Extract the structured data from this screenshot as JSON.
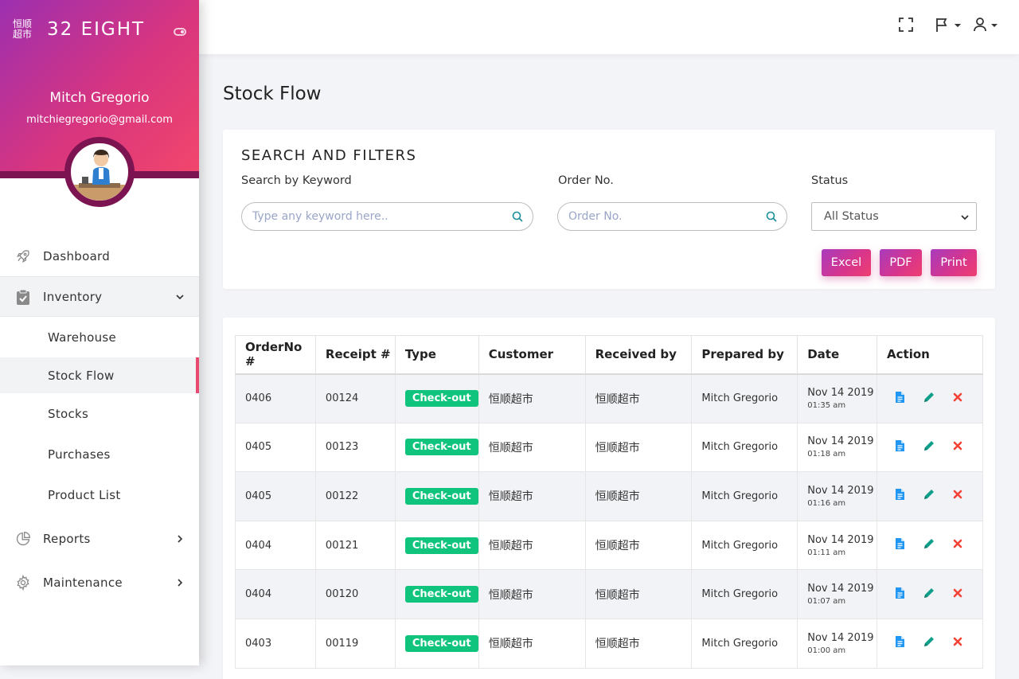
{
  "brand": {
    "logo_line1": "恒顺",
    "logo_line2": "超市",
    "name": "32 EIGHT"
  },
  "user": {
    "name": "Mitch Gregorio",
    "email": "mitchiegregorio@gmail.com"
  },
  "nav": {
    "dashboard": "Dashboard",
    "inventory": "Inventory",
    "sub": [
      "Warehouse",
      "Stock Flow",
      "Stocks",
      "Purchases",
      "Product List"
    ],
    "reports": "Reports",
    "maintenance": "Maintenance"
  },
  "page": {
    "title": "Stock Flow"
  },
  "filters": {
    "title": "SEARCH AND FILTERS",
    "keyword_label": "Search by Keyword",
    "keyword_placeholder": "Type any keyword here..",
    "order_label": "Order No.",
    "order_placeholder": "Order No.",
    "status_label": "Status",
    "status_value": "All Status",
    "excel": "Excel",
    "pdf": "PDF",
    "print": "Print"
  },
  "table": {
    "headers": [
      "OrderNo #",
      "Receipt #",
      "Type",
      "Customer",
      "Received by",
      "Prepared by",
      "Date",
      "Action"
    ],
    "rows": [
      {
        "order": "0406",
        "receipt": "00124",
        "type": "Check-out",
        "customer": "恒顺超市",
        "received": "恒顺超市",
        "prepared": "Mitch Gregorio",
        "date": "Nov 14 2019",
        "time": "01:35 am"
      },
      {
        "order": "0405",
        "receipt": "00123",
        "type": "Check-out",
        "customer": "恒顺超市",
        "received": "恒顺超市",
        "prepared": "Mitch Gregorio",
        "date": "Nov 14 2019",
        "time": "01:18 am"
      },
      {
        "order": "0405",
        "receipt": "00122",
        "type": "Check-out",
        "customer": "恒顺超市",
        "received": "恒顺超市",
        "prepared": "Mitch Gregorio",
        "date": "Nov 14 2019",
        "time": "01:16 am"
      },
      {
        "order": "0404",
        "receipt": "00121",
        "type": "Check-out",
        "customer": "恒顺超市",
        "received": "恒顺超市",
        "prepared": "Mitch Gregorio",
        "date": "Nov 14 2019",
        "time": "01:11 am"
      },
      {
        "order": "0404",
        "receipt": "00120",
        "type": "Check-out",
        "customer": "恒顺超市",
        "received": "恒顺超市",
        "prepared": "Mitch Gregorio",
        "date": "Nov 14 2019",
        "time": "01:07 am"
      },
      {
        "order": "0403",
        "receipt": "00119",
        "type": "Check-out",
        "customer": "恒顺超市",
        "received": "恒顺超市",
        "prepared": "Mitch Gregorio",
        "date": "Nov 14 2019",
        "time": "01:00 am"
      }
    ]
  },
  "colors": {
    "accent": "#d8357f",
    "accent_dark": "#7d1452",
    "badge": "#10c47e",
    "doc_icon": "#2196f3",
    "edit_icon": "#0e9e8a",
    "delete_icon": "#f44336"
  }
}
